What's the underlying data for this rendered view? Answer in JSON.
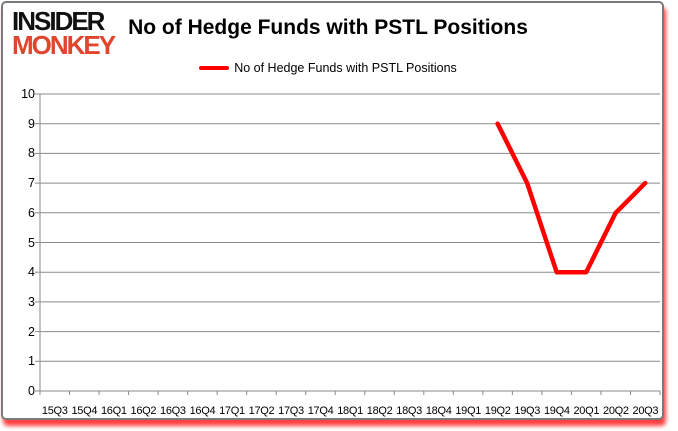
{
  "logo": {
    "line1": "INSIDER",
    "line2": "MONKEY"
  },
  "header": {
    "title": "No of Hedge Funds with PSTL Positions"
  },
  "legend": {
    "label": "No of Hedge Funds with PSTL Positions",
    "color": "#ff0000"
  },
  "colors": {
    "line": "#ff0000",
    "grid": "#8a8a8a",
    "axis": "#8a8a8a",
    "logo_red": "#e2452d",
    "frame_border": "#7a7a7a",
    "frame_shadow": "#ff0000",
    "text": "#000000"
  },
  "chart_data": {
    "type": "line",
    "title": "No of Hedge Funds with PSTL Positions",
    "categories": [
      "15Q3",
      "15Q4",
      "16Q1",
      "16Q2",
      "16Q3",
      "16Q4",
      "17Q1",
      "17Q2",
      "17Q3",
      "17Q4",
      "18Q1",
      "18Q2",
      "18Q3",
      "18Q4",
      "19Q1",
      "19Q2",
      "19Q3",
      "19Q4",
      "20Q1",
      "20Q2",
      "20Q3"
    ],
    "series": [
      {
        "name": "No of Hedge Funds with PSTL Positions",
        "color": "#ff0000",
        "values": [
          null,
          null,
          null,
          null,
          null,
          null,
          null,
          null,
          null,
          null,
          null,
          null,
          null,
          null,
          null,
          9,
          7,
          4,
          4,
          6,
          7
        ]
      }
    ],
    "xlabel": "",
    "ylabel": "",
    "ylim": [
      0,
      10
    ],
    "ytick_step": 1,
    "grid": "horizontal",
    "legend_position": "top-center"
  }
}
